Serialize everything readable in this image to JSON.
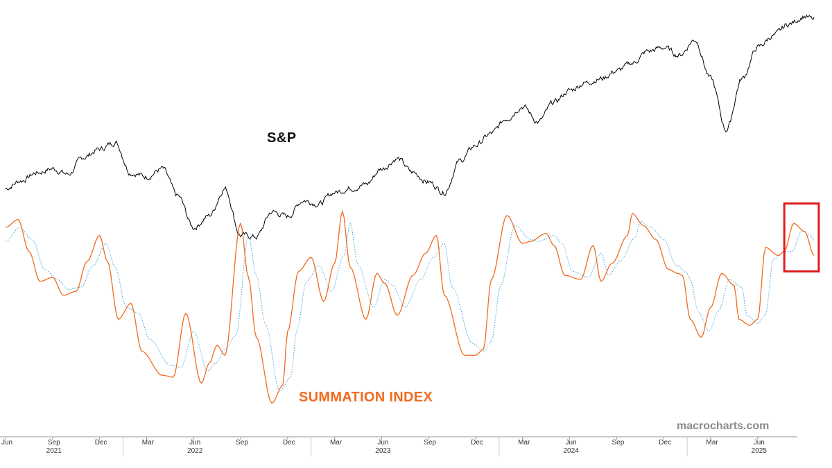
{
  "chart_data": {
    "type": "line",
    "title": "",
    "x_range": [
      "2021-06",
      "2025-08"
    ],
    "month_ticks": [
      {
        "label": "Jun",
        "m": 0
      },
      {
        "label": "Sep",
        "m": 3
      },
      {
        "label": "Dec",
        "m": 6
      },
      {
        "label": "Mar",
        "m": 9
      },
      {
        "label": "Jun",
        "m": 12
      },
      {
        "label": "Sep",
        "m": 15
      },
      {
        "label": "Dec",
        "m": 18
      },
      {
        "label": "Mar",
        "m": 21
      },
      {
        "label": "Jun",
        "m": 24
      },
      {
        "label": "Sep",
        "m": 27
      },
      {
        "label": "Dec",
        "m": 30
      },
      {
        "label": "Mar",
        "m": 33
      },
      {
        "label": "Jun",
        "m": 36
      },
      {
        "label": "Sep",
        "m": 39
      },
      {
        "label": "Dec",
        "m": 42
      },
      {
        "label": "Mar",
        "m": 45
      },
      {
        "label": "Jun",
        "m": 48
      }
    ],
    "year_labels": [
      {
        "label": "2021",
        "m": 3
      },
      {
        "label": "2022",
        "m": 12
      },
      {
        "label": "2023",
        "m": 24
      },
      {
        "label": "2024",
        "m": 36
      },
      {
        "label": "2025",
        "m": 48
      }
    ],
    "year_dividers_m": [
      7.5,
      19.5,
      31.5,
      43.5
    ],
    "series": [
      {
        "name": "S&P",
        "color": "#000000",
        "style": "solid",
        "ylim": [
          3400,
          6500
        ],
        "points": [
          [
            0,
            4200
          ],
          [
            1,
            4300
          ],
          [
            2,
            4400
          ],
          [
            3,
            4450
          ],
          [
            4,
            4380
          ],
          [
            5,
            4600
          ],
          [
            6,
            4700
          ],
          [
            7,
            4790
          ],
          [
            8,
            4400
          ],
          [
            9,
            4350
          ],
          [
            10,
            4450
          ],
          [
            11,
            4100
          ],
          [
            12,
            3700
          ],
          [
            13,
            3850
          ],
          [
            14,
            4200
          ],
          [
            15,
            3600
          ],
          [
            16,
            3580
          ],
          [
            17,
            3900
          ],
          [
            18,
            3840
          ],
          [
            19,
            4050
          ],
          [
            20,
            4000
          ],
          [
            21,
            4150
          ],
          [
            22,
            4200
          ],
          [
            23,
            4250
          ],
          [
            24,
            4450
          ],
          [
            25,
            4580
          ],
          [
            26,
            4400
          ],
          [
            27,
            4280
          ],
          [
            28,
            4150
          ],
          [
            29,
            4550
          ],
          [
            30,
            4750
          ],
          [
            31,
            4900
          ],
          [
            32,
            5100
          ],
          [
            33,
            5250
          ],
          [
            34,
            5050
          ],
          [
            35,
            5300
          ],
          [
            36,
            5450
          ],
          [
            37,
            5550
          ],
          [
            38,
            5600
          ],
          [
            39,
            5700
          ],
          [
            40,
            5800
          ],
          [
            41,
            5950
          ],
          [
            42,
            6000
          ],
          [
            43,
            5900
          ],
          [
            44,
            6100
          ],
          [
            45,
            5600
          ],
          [
            46,
            4950
          ],
          [
            47,
            5600
          ],
          [
            48,
            6000
          ],
          [
            49,
            6150
          ],
          [
            50,
            6300
          ],
          [
            51,
            6400
          ],
          [
            51.6,
            6350
          ]
        ]
      },
      {
        "name": "SUMMATION INDEX",
        "color": "#f06a1e",
        "style": "solid",
        "ylim": [
          0,
          100
        ],
        "points": [
          [
            0,
            92
          ],
          [
            0.8,
            96
          ],
          [
            1.5,
            80
          ],
          [
            2.2,
            65
          ],
          [
            3,
            67
          ],
          [
            3.7,
            58
          ],
          [
            4.5,
            60
          ],
          [
            5.2,
            75
          ],
          [
            6,
            88
          ],
          [
            6.5,
            75
          ],
          [
            7.2,
            46
          ],
          [
            8,
            54
          ],
          [
            8.7,
            30
          ],
          [
            10,
            18
          ],
          [
            10.7,
            17
          ],
          [
            11.5,
            49
          ],
          [
            12.5,
            14
          ],
          [
            13,
            24
          ],
          [
            13.5,
            33
          ],
          [
            14,
            28
          ],
          [
            15,
            94
          ],
          [
            15.5,
            67
          ],
          [
            16,
            37
          ],
          [
            17,
            4
          ],
          [
            17.7,
            13
          ],
          [
            18,
            40
          ],
          [
            18.7,
            70
          ],
          [
            19.5,
            77
          ],
          [
            20.3,
            55
          ],
          [
            21,
            74
          ],
          [
            21.5,
            100
          ],
          [
            22,
            72
          ],
          [
            23,
            46
          ],
          [
            23.7,
            69
          ],
          [
            24.2,
            64
          ],
          [
            25,
            48
          ],
          [
            26,
            68
          ],
          [
            26.8,
            79
          ],
          [
            27.5,
            88
          ],
          [
            28,
            58
          ],
          [
            29.3,
            28
          ],
          [
            30,
            28
          ],
          [
            30.5,
            31
          ],
          [
            31,
            66
          ],
          [
            32,
            98
          ],
          [
            33,
            84
          ],
          [
            33.5,
            85
          ],
          [
            34.5,
            89
          ],
          [
            35,
            83
          ],
          [
            35.7,
            68
          ],
          [
            36.7,
            66
          ],
          [
            37.5,
            83
          ],
          [
            38,
            65
          ],
          [
            38.7,
            74
          ],
          [
            39.7,
            88
          ],
          [
            40,
            99
          ],
          [
            40.7,
            93
          ],
          [
            41.5,
            86
          ],
          [
            42.3,
            71
          ],
          [
            42.9,
            69
          ],
          [
            43.2,
            68
          ],
          [
            43.7,
            46
          ],
          [
            44.4,
            37
          ],
          [
            45,
            52
          ],
          [
            45.7,
            69
          ],
          [
            46.5,
            63
          ],
          [
            46.8,
            46
          ],
          [
            47.5,
            43
          ],
          [
            48,
            46
          ],
          [
            48.5,
            82
          ],
          [
            49.3,
            78
          ],
          [
            49.7,
            80
          ],
          [
            50.3,
            94
          ],
          [
            51,
            90
          ],
          [
            51.6,
            78
          ]
        ]
      },
      {
        "name": "SUMMATION INDEX (signal)",
        "color": "#3aa0d8",
        "style": "dotted",
        "ylim": [
          0,
          100
        ],
        "points": [
          [
            0,
            85
          ],
          [
            0.9,
            92
          ],
          [
            1.7,
            86
          ],
          [
            2.5,
            71
          ],
          [
            3.3,
            66
          ],
          [
            4,
            61
          ],
          [
            4.8,
            62
          ],
          [
            5.6,
            73
          ],
          [
            6.4,
            84
          ],
          [
            7,
            72
          ],
          [
            7.7,
            52
          ],
          [
            8.5,
            49
          ],
          [
            9.2,
            36
          ],
          [
            10.5,
            23
          ],
          [
            11.2,
            22
          ],
          [
            12,
            40
          ],
          [
            12.9,
            20
          ],
          [
            13.4,
            24
          ],
          [
            14,
            31
          ],
          [
            14.7,
            38
          ],
          [
            15.5,
            88
          ],
          [
            16,
            68
          ],
          [
            16.6,
            43
          ],
          [
            17.5,
            10
          ],
          [
            18.2,
            17
          ],
          [
            18.6,
            41
          ],
          [
            19.2,
            65
          ],
          [
            20,
            73
          ],
          [
            20.8,
            60
          ],
          [
            21.6,
            78
          ],
          [
            22,
            94
          ],
          [
            22.5,
            73
          ],
          [
            23.5,
            52
          ],
          [
            24.2,
            66
          ],
          [
            24.7,
            63
          ],
          [
            25.5,
            52
          ],
          [
            26.5,
            66
          ],
          [
            27.3,
            77
          ],
          [
            28,
            84
          ],
          [
            28.5,
            62
          ],
          [
            29.8,
            34
          ],
          [
            30.5,
            30
          ],
          [
            31,
            35
          ],
          [
            31.6,
            63
          ],
          [
            32.5,
            93
          ],
          [
            33.5,
            86
          ],
          [
            34,
            85
          ],
          [
            35,
            88
          ],
          [
            35.5,
            84
          ],
          [
            36.2,
            70
          ],
          [
            37.2,
            67
          ],
          [
            38,
            79
          ],
          [
            38.5,
            68
          ],
          [
            39.2,
            75
          ],
          [
            40.2,
            87
          ],
          [
            40.5,
            95
          ],
          [
            41.2,
            92
          ],
          [
            42,
            86
          ],
          [
            42.8,
            73
          ],
          [
            43.4,
            70
          ],
          [
            43.7,
            66
          ],
          [
            44.2,
            50
          ],
          [
            44.9,
            40
          ],
          [
            45.5,
            50
          ],
          [
            46.2,
            66
          ],
          [
            47,
            62
          ],
          [
            47.3,
            48
          ],
          [
            48,
            44
          ],
          [
            48.5,
            48
          ],
          [
            49,
            76
          ],
          [
            49.8,
            80
          ],
          [
            50.2,
            80
          ],
          [
            50.8,
            90
          ],
          [
            51.4,
            88
          ],
          [
            51.6,
            85
          ]
        ]
      }
    ],
    "highlight_box": {
      "m_start": 49.7,
      "m_end": 51.9,
      "y_low": 70,
      "y_high": 104,
      "color": "#e01a1a"
    }
  },
  "labels": {
    "sp": "S&P",
    "summation": "SUMMATION INDEX",
    "watermark": "macrocharts.com"
  }
}
